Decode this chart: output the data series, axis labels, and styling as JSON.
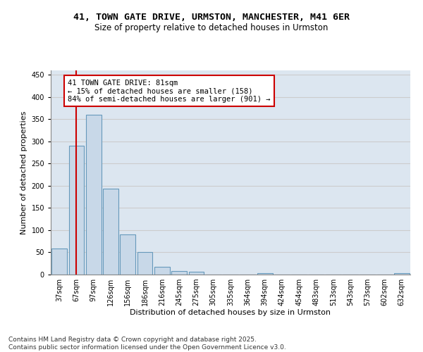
{
  "title_line1": "41, TOWN GATE DRIVE, URMSTON, MANCHESTER, M41 6ER",
  "title_line2": "Size of property relative to detached houses in Urmston",
  "xlabel": "Distribution of detached houses by size in Urmston",
  "ylabel": "Number of detached properties",
  "categories": [
    "37sqm",
    "67sqm",
    "97sqm",
    "126sqm",
    "156sqm",
    "186sqm",
    "216sqm",
    "245sqm",
    "275sqm",
    "305sqm",
    "335sqm",
    "364sqm",
    "394sqm",
    "424sqm",
    "454sqm",
    "483sqm",
    "513sqm",
    "543sqm",
    "573sqm",
    "602sqm",
    "632sqm"
  ],
  "values": [
    58,
    290,
    360,
    193,
    91,
    50,
    18,
    8,
    6,
    0,
    0,
    0,
    3,
    0,
    0,
    0,
    0,
    0,
    0,
    0,
    3
  ],
  "bar_color": "#c8d8e8",
  "bar_edge_color": "#6699bb",
  "vline_x": 1.0,
  "vline_color": "#cc0000",
  "annotation_text": "41 TOWN GATE DRIVE: 81sqm\n← 15% of detached houses are smaller (158)\n84% of semi-detached houses are larger (901) →",
  "annotation_box_color": "#ffffff",
  "annotation_box_edge": "#cc0000",
  "ylim": [
    0,
    460
  ],
  "yticks": [
    0,
    50,
    100,
    150,
    200,
    250,
    300,
    350,
    400,
    450
  ],
  "grid_color": "#cccccc",
  "background_color": "#dce6f0",
  "footer_line1": "Contains HM Land Registry data © Crown copyright and database right 2025.",
  "footer_line2": "Contains public sector information licensed under the Open Government Licence v3.0.",
  "title_fontsize": 9.5,
  "subtitle_fontsize": 8.5,
  "axis_label_fontsize": 8,
  "tick_fontsize": 7,
  "annotation_fontsize": 7.5,
  "footer_fontsize": 6.5
}
